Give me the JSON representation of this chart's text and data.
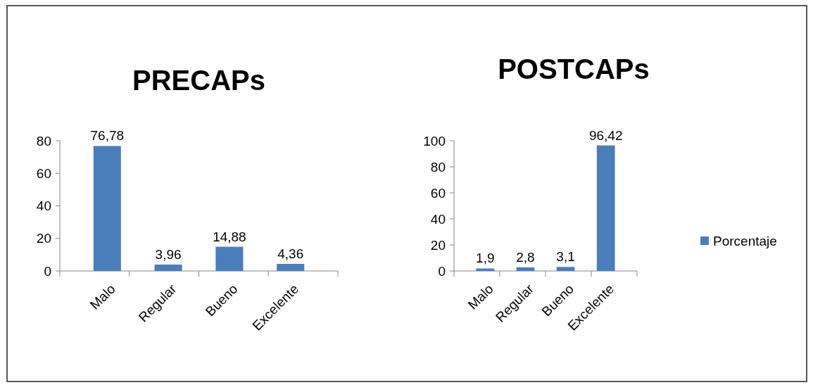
{
  "chart_data": [
    {
      "type": "bar",
      "title": "PRECAPs",
      "categories": [
        "Malo",
        "Regular",
        "Bueno",
        "Excelente"
      ],
      "values": [
        76.78,
        3.96,
        14.88,
        4.36
      ],
      "color": "#4a7ebb",
      "value_labels": [
        "76,78",
        "3,96",
        "14,88",
        "4,36"
      ],
      "ylim": [
        0,
        80
      ],
      "yticks": [
        0,
        20,
        40,
        60,
        80
      ],
      "grid": false
    },
    {
      "type": "bar",
      "title": "POSTCAPs",
      "categories": [
        "Malo",
        "Regular",
        "Bueno",
        "Excelente"
      ],
      "series": [
        {
          "name": "Porcentaje",
          "color": "#4a7ebb",
          "values": [
            1.9,
            2.8,
            3.1,
            96.42
          ],
          "value_labels": [
            "1,9",
            "2,8",
            "3,1",
            "96,42"
          ]
        }
      ],
      "ylim": [
        0,
        100
      ],
      "yticks": [
        0,
        20,
        40,
        60,
        80,
        100
      ],
      "grid": false,
      "legend": "right"
    }
  ]
}
